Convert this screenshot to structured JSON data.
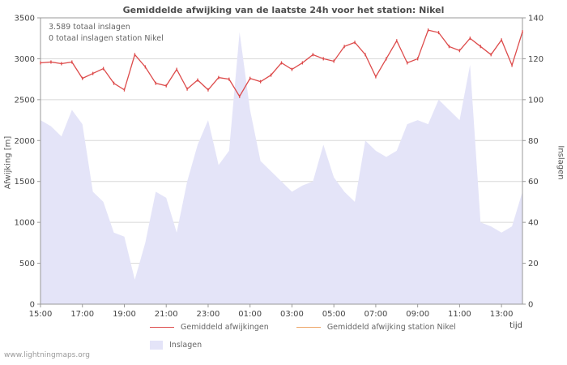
{
  "title": "Gemiddelde afwijking van de laatste 24h voor het station: Nikel",
  "annotations": {
    "total_strikes": "3.589 totaal inslagen",
    "station_strikes": "0 totaal inslagen station Nikel"
  },
  "axes": {
    "left_label": "Afwijking  [m]",
    "right_label": "Inslagen",
    "time_label": "tijd"
  },
  "legend": {
    "series1": "Gemiddeld afwijkingen",
    "series2": "Gemiddeld afwijking station Nikel",
    "series3": "Inslagen"
  },
  "footer": "www.lightningmaps.org",
  "colors": {
    "deviation_line": "#dd4b4b",
    "station_line": "#eda667",
    "strikes_fill": "#e4e4f8",
    "grid": "#d8d8d8",
    "frame": "#999999",
    "text": "#555555"
  },
  "chart_data": {
    "type": "line",
    "x": [
      "15:00",
      "15:30",
      "16:00",
      "16:30",
      "17:00",
      "17:30",
      "18:00",
      "18:30",
      "19:00",
      "19:30",
      "20:00",
      "20:30",
      "21:00",
      "21:30",
      "22:00",
      "22:30",
      "23:00",
      "23:30",
      "00:00",
      "00:30",
      "01:00",
      "01:30",
      "02:00",
      "02:30",
      "03:00",
      "03:30",
      "04:00",
      "04:30",
      "05:00",
      "05:30",
      "06:00",
      "06:30",
      "07:00",
      "07:30",
      "08:00",
      "08:30",
      "09:00",
      "09:30",
      "10:00",
      "10:30",
      "11:00",
      "11:30",
      "12:00",
      "12:30",
      "13:00",
      "13:30",
      "14:00"
    ],
    "series": [
      {
        "name": "Gemiddeld afwijkingen",
        "type": "line",
        "axis": "left",
        "values": [
          2950,
          2960,
          2940,
          2960,
          2760,
          2820,
          2880,
          2700,
          2620,
          3050,
          2900,
          2700,
          2670,
          2870,
          2630,
          2740,
          2620,
          2770,
          2750,
          2540,
          2760,
          2720,
          2800,
          2950,
          2870,
          2950,
          3050,
          3000,
          2970,
          3150,
          3200,
          3050,
          2780,
          3000,
          3220,
          2950,
          3000,
          3350,
          3320,
          3150,
          3100,
          3250,
          3150,
          3050,
          3230,
          2920,
          3330
        ]
      },
      {
        "name": "Gemiddeld afwijking station Nikel",
        "type": "line",
        "axis": "left",
        "values": []
      },
      {
        "name": "Inslagen",
        "type": "area",
        "axis": "right",
        "values": [
          90,
          87,
          82,
          95,
          88,
          55,
          50,
          35,
          33,
          12,
          30,
          55,
          52,
          35,
          60,
          78,
          90,
          68,
          75,
          133,
          95,
          70,
          65,
          60,
          55,
          58,
          60,
          78,
          62,
          55,
          50,
          80,
          75,
          72,
          75,
          88,
          90,
          88,
          100,
          95,
          90,
          117,
          40,
          38,
          35,
          38,
          55
        ]
      }
    ],
    "left_axis": {
      "label": "Afwijking [m]",
      "min": 0,
      "max": 3500,
      "ticks": [
        0,
        500,
        1000,
        1500,
        2000,
        2500,
        3000,
        3500
      ]
    },
    "right_axis": {
      "label": "Inslagen",
      "min": 0,
      "max": 140,
      "ticks": [
        0,
        20,
        40,
        60,
        80,
        100,
        120,
        140
      ]
    },
    "x_ticks": [
      "15:00",
      "17:00",
      "19:00",
      "21:00",
      "23:00",
      "01:00",
      "03:00",
      "05:00",
      "07:00",
      "09:00",
      "11:00",
      "13:00"
    ],
    "grid": "horizontal",
    "legend_position": "bottom"
  }
}
